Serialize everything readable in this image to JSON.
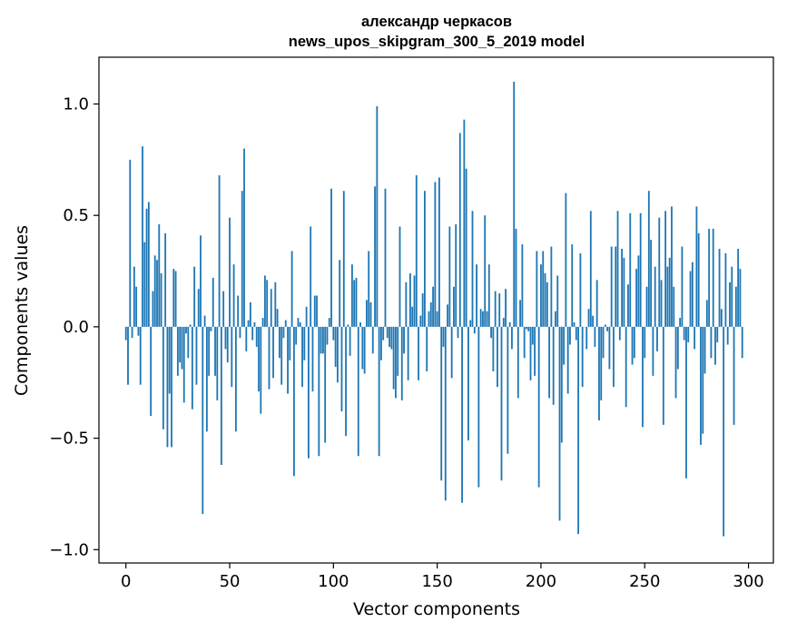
{
  "chart_data": {
    "type": "bar",
    "title": "александр черкасов",
    "subtitle": "news_upos_skipgram_300_5_2019 model",
    "xlabel": "Vector components",
    "ylabel": "Components values",
    "xlim": [
      -13,
      312
    ],
    "ylim": [
      -1.06,
      1.21
    ],
    "xticks": [
      0,
      50,
      100,
      150,
      200,
      250,
      300
    ],
    "xtick_labels": [
      "0",
      "50",
      "100",
      "150",
      "200",
      "250",
      "300"
    ],
    "yticks": [
      -1.0,
      -0.5,
      0.0,
      0.5,
      1.0
    ],
    "ytick_labels": [
      "−1.0",
      "−0.5",
      "0.0",
      "0.5",
      "1.0"
    ],
    "grid": false,
    "bar_color": "#1f77b4",
    "x": "0..299 (component index)",
    "values": [
      -0.06,
      -0.26,
      0.75,
      -0.05,
      0.27,
      0.18,
      -0.04,
      -0.26,
      0.81,
      0.38,
      0.53,
      0.56,
      -0.4,
      0.16,
      0.32,
      0.3,
      0.46,
      0.24,
      -0.46,
      0.42,
      -0.54,
      -0.3,
      -0.54,
      0.26,
      0.25,
      -0.22,
      -0.16,
      -0.19,
      -0.34,
      -0.03,
      -0.14,
      0.01,
      -0.37,
      0.27,
      -0.26,
      0.17,
      0.41,
      -0.84,
      0.05,
      -0.47,
      -0.22,
      -0.02,
      0.22,
      -0.22,
      -0.33,
      0.68,
      -0.62,
      0.16,
      -0.1,
      -0.16,
      0.49,
      -0.27,
      0.28,
      -0.47,
      0.14,
      -0.05,
      0.61,
      0.8,
      -0.11,
      0.03,
      0.11,
      -0.06,
      0.02,
      -0.09,
      -0.29,
      -0.39,
      0.04,
      0.23,
      0.21,
      -0.28,
      0.17,
      -0.23,
      0.2,
      0.08,
      -0.14,
      -0.26,
      -0.05,
      0.03,
      -0.3,
      -0.15,
      0.34,
      -0.67,
      -0.08,
      0.04,
      0.02,
      -0.27,
      -0.15,
      0.09,
      -0.59,
      0.45,
      -0.29,
      0.14,
      0.14,
      -0.58,
      -0.12,
      -0.12,
      -0.52,
      -0.08,
      0.04,
      0.62,
      -0.06,
      -0.18,
      -0.25,
      0.3,
      -0.38,
      0.61,
      -0.49,
      0.01,
      -0.13,
      0.28,
      0.21,
      0.22,
      -0.58,
      0.02,
      -0.19,
      -0.21,
      0.12,
      0.34,
      0.11,
      -0.12,
      0.63,
      0.99,
      -0.58,
      -0.15,
      -0.06,
      0.62,
      -0.05,
      -0.09,
      -0.1,
      -0.28,
      -0.32,
      -0.22,
      0.45,
      -0.33,
      -0.12,
      0.2,
      -0.24,
      0.24,
      0.09,
      0.23,
      0.68,
      -0.24,
      0.05,
      0.15,
      0.61,
      -0.2,
      0.07,
      0.11,
      0.18,
      0.65,
      0.07,
      0.67,
      -0.69,
      -0.09,
      -0.78,
      0.1,
      0.45,
      -0.23,
      0.18,
      0.46,
      -0.05,
      0.87,
      -0.79,
      0.93,
      0.71,
      -0.51,
      0.03,
      0.52,
      -0.03,
      0.28,
      -0.72,
      0.08,
      0.07,
      0.5,
      0.07,
      0.28,
      -0.05,
      -0.2,
      0.16,
      -0.27,
      0.15,
      -0.69,
      0.04,
      0.17,
      -0.57,
      0.02,
      -0.1,
      1.1,
      0.44,
      -0.32,
      0.12,
      0.37,
      -0.14,
      -0.01,
      -0.02,
      -0.24,
      -0.08,
      -0.22,
      0.34,
      -0.72,
      0.28,
      0.34,
      0.24,
      0.2,
      -0.32,
      0.36,
      -0.35,
      0.07,
      0.23,
      -0.87,
      -0.52,
      -0.17,
      0.6,
      -0.3,
      -0.08,
      0.37,
      0.02,
      -0.06,
      -0.93,
      0.33,
      -0.27,
      0.0,
      -0.1,
      0.08,
      0.52,
      0.05,
      -0.09,
      0.21,
      -0.42,
      -0.33,
      -0.14,
      0.01,
      -0.02,
      -0.19,
      0.36,
      -0.27,
      0.36,
      0.52,
      -0.06,
      0.35,
      0.31,
      -0.36,
      0.19,
      0.51,
      -0.17,
      -0.14,
      0.26,
      0.32,
      0.51,
      -0.45,
      -0.14,
      0.18,
      0.61,
      0.39,
      -0.22,
      0.27,
      -0.11,
      0.49,
      0.21,
      -0.44,
      0.52,
      0.27,
      0.31,
      0.54,
      0.18,
      -0.32,
      -0.19,
      0.04,
      0.36,
      -0.06,
      -0.68,
      -0.07,
      0.25,
      0.29,
      -0.1,
      0.54,
      0.42,
      -0.53,
      -0.48,
      -0.21,
      0.12,
      0.44,
      -0.14,
      0.44,
      -0.17,
      -0.07,
      0.35,
      0.08,
      -0.94,
      0.33,
      -0.08,
      0.2,
      0.27,
      -0.44,
      0.18,
      0.35,
      0.26,
      -0.14
    ],
    "value_range_shown": [
      -0.94,
      1.1
    ]
  }
}
